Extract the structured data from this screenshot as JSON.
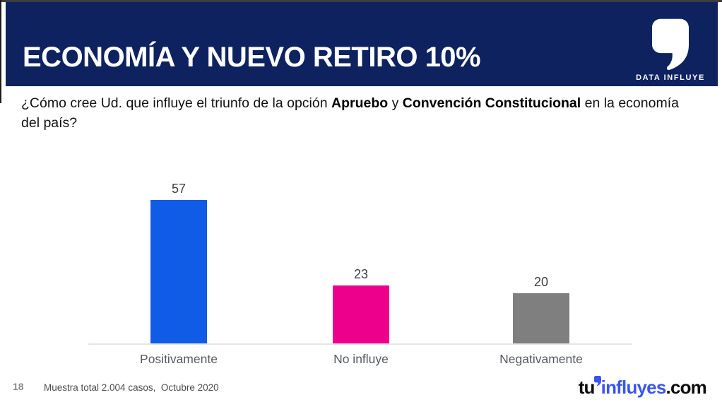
{
  "slide": {
    "title": "ECONOMÍA Y NUEVO RETIRO 10%",
    "brand": {
      "logo_label": "DATA INFLUYE"
    },
    "question": {
      "prefix": "¿Cómo cree Ud. que influye el triunfo de la opción ",
      "bold1": "Apruebo",
      "mid": " y ",
      "bold2": "Convención Constitucional",
      "suffix": " en la economía del país?"
    },
    "footer": {
      "page_number": "18",
      "note": "Muestra total 2.004 casos,  Octubre 2020",
      "site_logo": {
        "part1": "tu",
        "part2": "influyes",
        "part3": ".com"
      }
    },
    "colors": {
      "header_bg": "#0e2260",
      "title_text": "#ffffff",
      "logo_blue": "#3a55ef",
      "axis_line": "#e4e4e4"
    }
  },
  "chart_data": {
    "type": "bar",
    "categories": [
      "Positivamente",
      "No influye",
      "Negativamente"
    ],
    "values": [
      57,
      23,
      20
    ],
    "bar_colors": [
      "#115ce6",
      "#ec008c",
      "#7f7f7f"
    ],
    "title": "",
    "xlabel": "",
    "ylabel": "",
    "ylim": [
      0,
      60
    ],
    "grid": false,
    "legend": false,
    "data_labels": true
  }
}
